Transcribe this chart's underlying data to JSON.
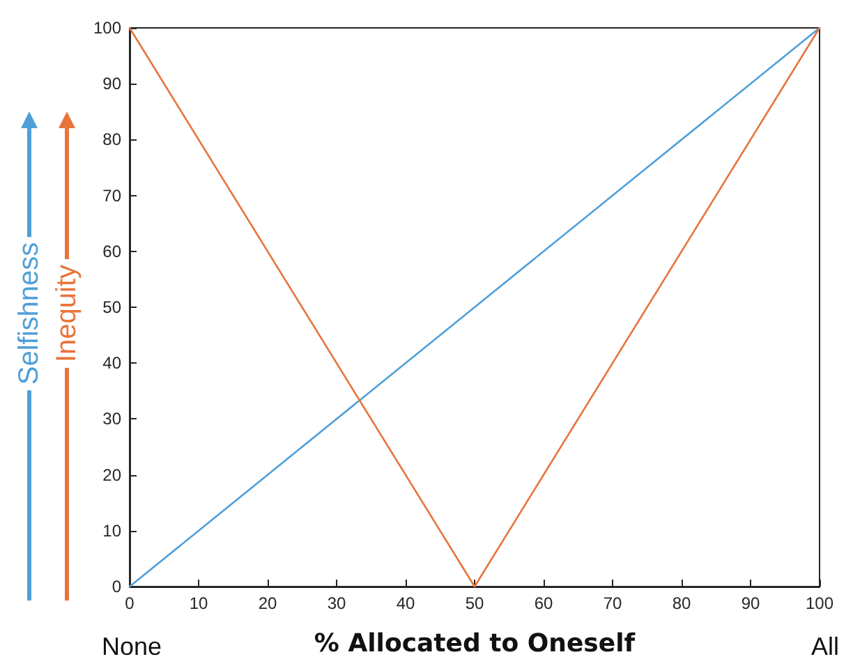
{
  "chart_data": {
    "type": "line",
    "xlabel": "% Allocated to Oneself",
    "x": [
      0,
      50,
      100
    ],
    "series": [
      {
        "name": "Selfishness",
        "color": "#4f9fd8",
        "values": [
          0,
          50,
          100
        ]
      },
      {
        "name": "Inequity",
        "color": "#e8743b",
        "values": [
          100,
          0,
          100
        ]
      }
    ],
    "xlim": [
      0,
      100
    ],
    "xticks": [
      0,
      10,
      20,
      30,
      40,
      50,
      60,
      70,
      80,
      90,
      100
    ],
    "ylim": [
      0,
      100
    ],
    "yticks": [
      0,
      10,
      20,
      30,
      40,
      50,
      60,
      70,
      80,
      90,
      100
    ],
    "annotations": [
      "None",
      "All"
    ],
    "grid": false,
    "legend": false,
    "marker": "none",
    "line_style": "solid"
  }
}
